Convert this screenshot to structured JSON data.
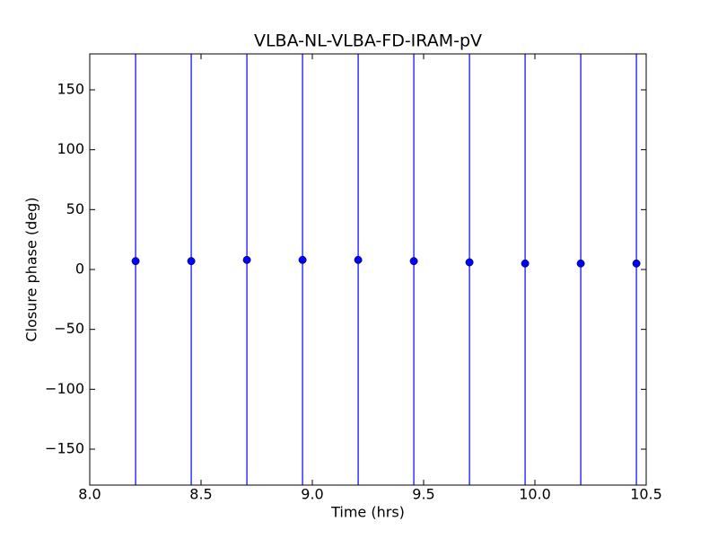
{
  "chart_data": {
    "type": "errorbar",
    "title": "VLBA-NL-VLBA-FD-IRAM-pV",
    "xlabel": "Time (hrs)",
    "ylabel": "Closure phase (deg)",
    "x": [
      8.206,
      8.456,
      8.706,
      8.956,
      9.206,
      9.456,
      9.706,
      9.956,
      10.206,
      10.456
    ],
    "values": [
      7,
      7,
      8,
      8,
      8,
      7,
      6,
      5,
      5,
      5
    ],
    "errors": [
      250,
      250,
      250,
      250,
      250,
      250,
      250,
      250,
      250,
      250
    ],
    "color": "#0000ff",
    "xlim": [
      8.0,
      10.5
    ],
    "xticks": [
      {
        "value": 8.0,
        "label": "8.0"
      },
      8.5,
      {
        "value": 9.0,
        "label": "9.0"
      },
      9.5,
      {
        "value": 10.0,
        "label": "10.0"
      },
      10.5
    ],
    "ylim": [
      -180,
      180
    ],
    "yticks": [
      {
        "value": -150,
        "label": "−150"
      },
      {
        "value": -100,
        "label": "−100"
      },
      {
        "value": -50,
        "label": "−50"
      },
      0,
      50,
      100,
      150
    ],
    "grid": false
  }
}
